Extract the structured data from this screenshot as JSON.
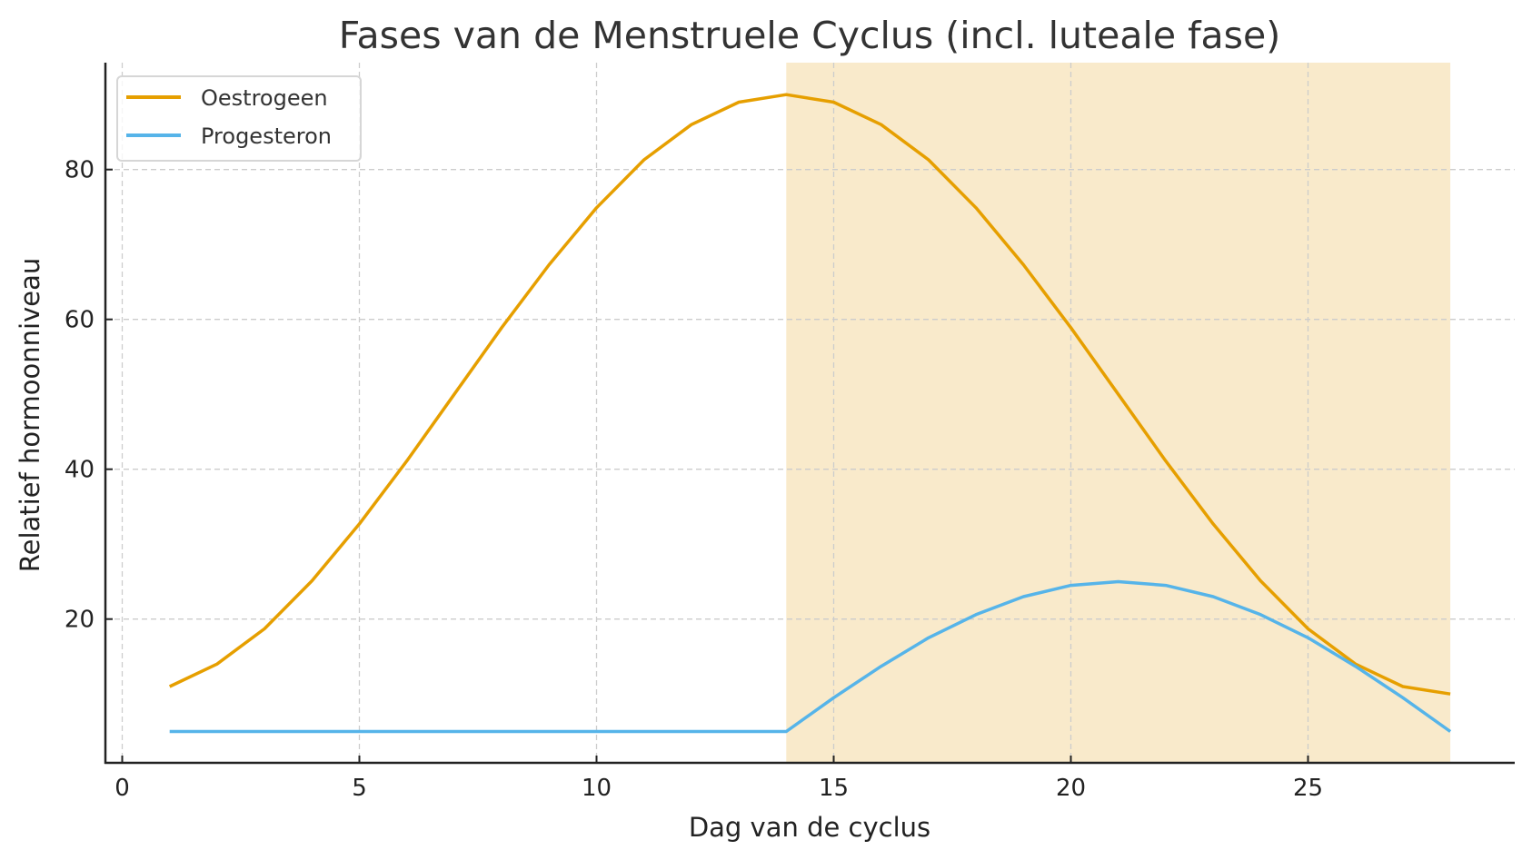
{
  "chart_data": {
    "type": "line",
    "title": "Fases van de Menstruele Cyclus (incl. luteale fase)",
    "xlabel": "Dag van de cyclus",
    "ylabel": "Relatief hormoonniveau",
    "x": [
      1,
      2,
      3,
      4,
      5,
      6,
      7,
      8,
      9,
      10,
      11,
      12,
      13,
      14,
      15,
      16,
      17,
      18,
      19,
      20,
      21,
      22,
      23,
      24,
      25,
      26,
      27,
      28
    ],
    "series": [
      {
        "name": "Oestrogeen",
        "color": "#E69F00",
        "values": [
          11.0,
          14.0,
          18.7,
          25.1,
          32.7,
          41.1,
          50.0,
          58.9,
          67.3,
          74.9,
          81.3,
          86.0,
          89.0,
          90.0,
          89.0,
          86.0,
          81.3,
          74.9,
          67.3,
          58.9,
          50.0,
          41.1,
          32.7,
          25.1,
          18.7,
          14.0,
          11.0,
          10.0
        ]
      },
      {
        "name": "Progesteron",
        "color": "#56B4E9",
        "values": [
          5,
          5,
          5,
          5,
          5,
          5,
          5,
          5,
          5,
          5,
          5,
          5,
          5,
          5.0,
          9.5,
          13.7,
          17.5,
          20.6,
          23.0,
          24.5,
          25.0,
          24.5,
          23.0,
          20.6,
          17.5,
          13.7,
          9.5,
          5.0
        ]
      }
    ],
    "shaded_region": {
      "label": "luteale fase",
      "x_start": 14,
      "x_end": 28,
      "color": "#F9EACB"
    },
    "xticks": [
      0,
      5,
      10,
      15,
      20,
      25
    ],
    "yticks": [
      20,
      40,
      60,
      80
    ],
    "xlim": [
      -0.35,
      29.35
    ],
    "ylim": [
      0.8,
      94.5
    ],
    "grid": true,
    "legend_position": "upper left"
  },
  "legend": {
    "items": [
      {
        "label": "Oestrogeen",
        "color": "#E69F00"
      },
      {
        "label": "Progesteron",
        "color": "#56B4E9"
      }
    ]
  }
}
